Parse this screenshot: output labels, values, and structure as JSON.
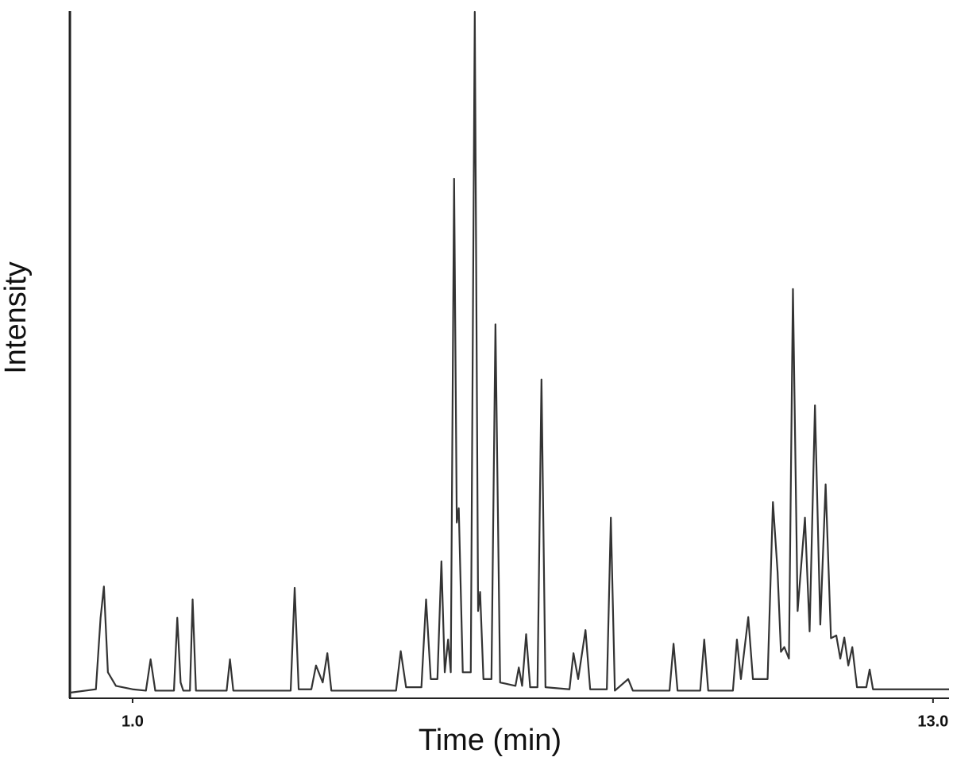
{
  "chart_data": {
    "type": "line",
    "x_label": "Time (min)",
    "y_label": "Intensity",
    "xlim": [
      0.06,
      13.24
    ],
    "ylim": [
      0,
      100
    ],
    "xticks": [
      {
        "value": 1,
        "label": "1.0"
      },
      {
        "value": 13,
        "label": "13.0"
      }
    ],
    "x": [
      0.06,
      0.45,
      0.52,
      0.57,
      0.63,
      0.75,
      1.0,
      1.2,
      1.27,
      1.34,
      1.62,
      1.67,
      1.72,
      1.76,
      1.86,
      1.9,
      1.95,
      2.41,
      2.46,
      2.51,
      3.37,
      3.43,
      3.49,
      3.68,
      3.75,
      3.85,
      3.92,
      3.98,
      4.95,
      5.02,
      5.1,
      5.33,
      5.4,
      5.47,
      5.57,
      5.63,
      5.68,
      5.73,
      5.77,
      5.82,
      5.86,
      5.89,
      5.95,
      6.07,
      6.13,
      6.18,
      6.21,
      6.26,
      6.38,
      6.44,
      6.51,
      6.74,
      6.79,
      6.84,
      6.9,
      6.96,
      7.07,
      7.13,
      7.19,
      7.55,
      7.61,
      7.68,
      7.79,
      7.86,
      8.11,
      8.17,
      8.23,
      8.43,
      8.5,
      9.05,
      9.11,
      9.17,
      9.51,
      9.57,
      9.63,
      10.0,
      10.06,
      10.12,
      10.23,
      10.3,
      10.52,
      10.6,
      10.67,
      10.72,
      10.77,
      10.84,
      10.9,
      10.97,
      11.08,
      11.15,
      11.23,
      11.31,
      11.39,
      11.47,
      11.55,
      11.61,
      11.67,
      11.73,
      11.79,
      11.86,
      12.0,
      12.05,
      12.1,
      13.24
    ],
    "series": [
      {
        "color": "#333333",
        "values": [
          0,
          0.5,
          11,
          15.6,
          3,
          1,
          0.5,
          0.3,
          4.9,
          0.3,
          0.3,
          11,
          1.5,
          0.3,
          0.3,
          13.7,
          0.3,
          0.3,
          4.9,
          0.3,
          0.3,
          15.4,
          0.5,
          0.5,
          4.0,
          1.5,
          5.8,
          0.3,
          0.3,
          6.1,
          0.8,
          0.8,
          13.7,
          2,
          2,
          19.3,
          3,
          7.8,
          3,
          75.5,
          25,
          27.1,
          3,
          3,
          100,
          12,
          14.8,
          2,
          2,
          54.1,
          1.5,
          1,
          3.7,
          1,
          8.6,
          0.8,
          0.8,
          46.0,
          0.8,
          0.5,
          5.8,
          2,
          9.2,
          0.5,
          0.5,
          25.7,
          0.3,
          2.0,
          0.3,
          0.3,
          7.2,
          0.3,
          0.3,
          7.8,
          0.3,
          0.3,
          7.8,
          2,
          11.1,
          2,
          2,
          28.0,
          17.7,
          6,
          6.7,
          5,
          59.3,
          12,
          25.7,
          9,
          42.2,
          10,
          30.6,
          8,
          8.4,
          5,
          8.1,
          4,
          6.7,
          0.8,
          0.8,
          3.4,
          0.5,
          0.5
        ]
      }
    ]
  }
}
